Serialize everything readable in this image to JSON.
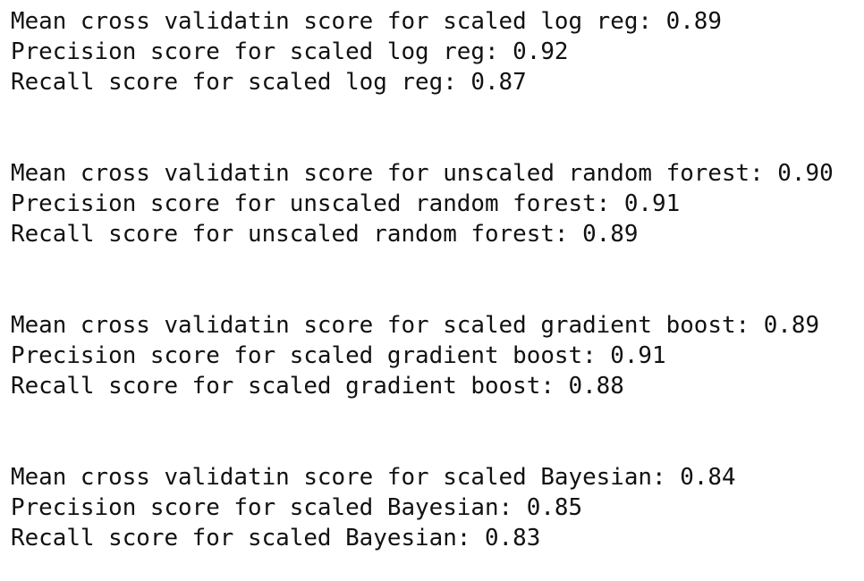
{
  "output": {
    "groups": [
      {
        "lines": [
          "Mean cross validatin score for scaled log reg: 0.89",
          "Precision score for scaled log reg: 0.92",
          "Recall score for scaled log reg: 0.87"
        ]
      },
      {
        "lines": [
          "Mean cross validatin score for unscaled random forest: 0.90",
          "Precision score for unscaled random forest: 0.91",
          "Recall score for unscaled random forest: 0.89"
        ]
      },
      {
        "lines": [
          "Mean cross validatin score for scaled gradient boost: 0.89",
          "Precision score for scaled gradient boost: 0.91",
          "Recall score for scaled gradient boost: 0.88"
        ]
      },
      {
        "lines": [
          "Mean cross validatin score for scaled Bayesian: 0.84",
          "Precision score for scaled Bayesian: 0.85",
          "Recall score for scaled Bayesian: 0.83"
        ]
      }
    ]
  }
}
